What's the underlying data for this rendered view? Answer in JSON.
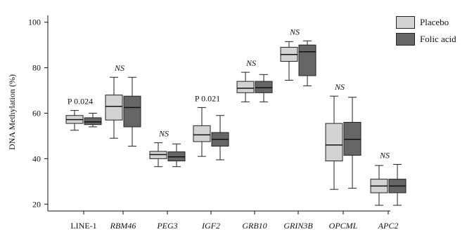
{
  "chart_data": {
    "type": "boxplot",
    "title": "",
    "ylabel": "DNA Methylation (%)",
    "xlabel": "",
    "ylim": [
      17,
      103
    ],
    "yticks": [
      20,
      40,
      60,
      80,
      100
    ],
    "categories": [
      "LINE-1",
      "RBM46",
      "PEG3",
      "IGF2",
      "GRB10",
      "GRIN3B",
      "OPCML",
      "APC2"
    ],
    "category_italic": [
      false,
      true,
      true,
      true,
      true,
      true,
      true,
      true
    ],
    "annotations": [
      "P 0.024",
      "NS",
      "NS",
      "P 0.021",
      "NS",
      "NS",
      "NS",
      "NS"
    ],
    "legend_position": "top-right",
    "series": [
      {
        "name": "Placebo",
        "color": "#d3d3d3",
        "boxes": [
          {
            "min": 52.5,
            "q1": 55.5,
            "median": 57.2,
            "q3": 59.0,
            "max": 61.2
          },
          {
            "min": 49.0,
            "q1": 57.0,
            "median": 63.0,
            "q3": 68.0,
            "max": 75.8
          },
          {
            "min": 36.5,
            "q1": 40.0,
            "median": 41.8,
            "q3": 43.2,
            "max": 47.0
          },
          {
            "min": 41.0,
            "q1": 47.5,
            "median": 50.5,
            "q3": 54.5,
            "max": 62.5
          },
          {
            "min": 65.0,
            "q1": 69.0,
            "median": 71.0,
            "q3": 74.0,
            "max": 78.0
          },
          {
            "min": 74.5,
            "q1": 82.8,
            "median": 85.8,
            "q3": 89.0,
            "max": 91.5
          },
          {
            "min": 26.5,
            "q1": 39.0,
            "median": 46.0,
            "q3": 55.5,
            "max": 67.5
          },
          {
            "min": 19.5,
            "q1": 25.0,
            "median": 28.0,
            "q3": 31.0,
            "max": 37.0
          }
        ]
      },
      {
        "name": "Folic acid",
        "color": "#666666",
        "boxes": [
          {
            "min": 54.0,
            "q1": 55.0,
            "median": 56.2,
            "q3": 58.0,
            "max": 60.0
          },
          {
            "min": 45.5,
            "q1": 54.0,
            "median": 62.5,
            "q3": 67.5,
            "max": 75.8
          },
          {
            "min": 36.5,
            "q1": 39.0,
            "median": 40.8,
            "q3": 43.0,
            "max": 46.5
          },
          {
            "min": 39.5,
            "q1": 45.5,
            "median": 48.5,
            "q3": 51.5,
            "max": 59.0
          },
          {
            "min": 65.0,
            "q1": 69.0,
            "median": 71.2,
            "q3": 74.0,
            "max": 77.0
          },
          {
            "min": 72.0,
            "q1": 76.5,
            "median": 87.0,
            "q3": 90.0,
            "max": 91.8
          },
          {
            "min": 27.0,
            "q1": 41.5,
            "median": 48.5,
            "q3": 56.0,
            "max": 67.0
          },
          {
            "min": 19.5,
            "q1": 25.0,
            "median": 28.0,
            "q3": 31.0,
            "max": 37.5
          }
        ]
      }
    ]
  }
}
